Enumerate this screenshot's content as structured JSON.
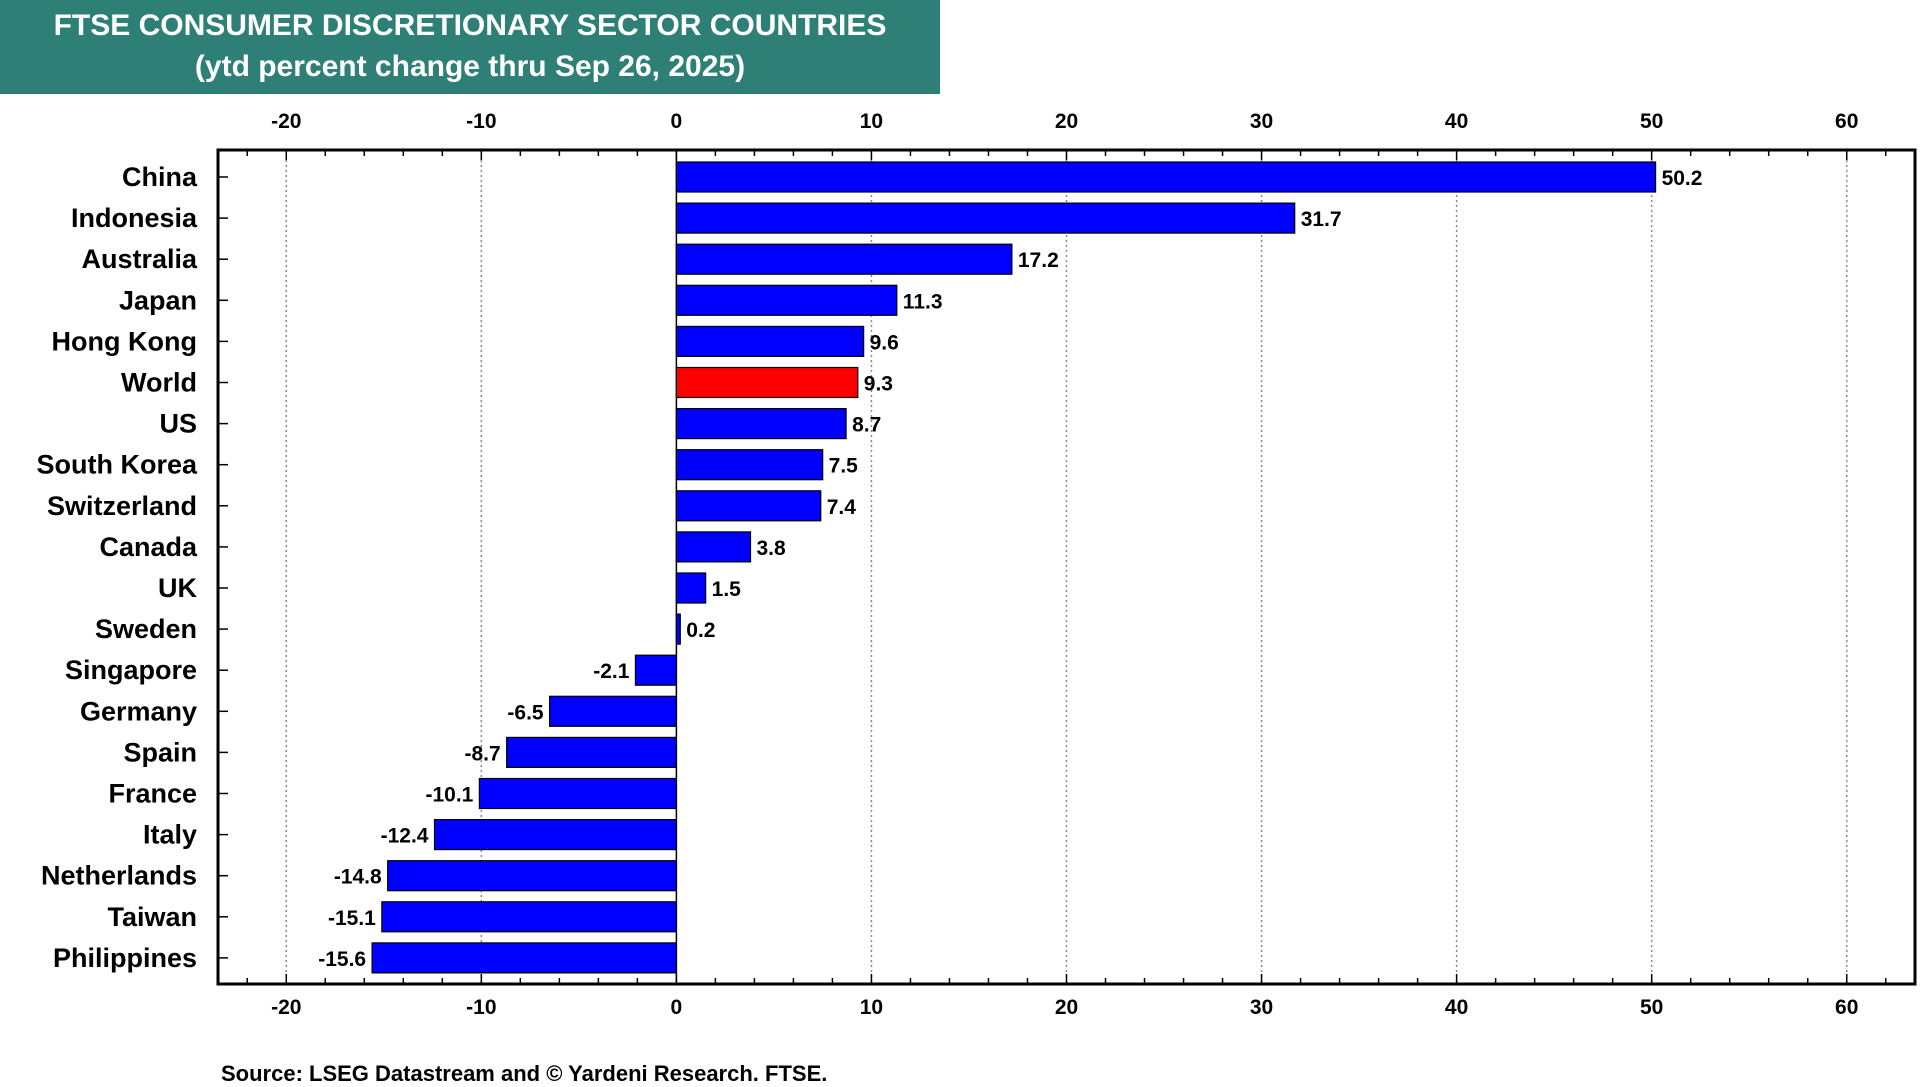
{
  "chart_data": {
    "type": "bar",
    "orientation": "horizontal",
    "title": "FTSE CONSUMER DISCRETIONARY SECTOR COUNTRIES",
    "subtitle": "(ytd percent change thru Sep 26, 2025)",
    "categories": [
      "China",
      "Indonesia",
      "Australia",
      "Japan",
      "Hong Kong",
      "World",
      "US",
      "South Korea",
      "Switzerland",
      "Canada",
      "UK",
      "Sweden",
      "Singapore",
      "Germany",
      "Spain",
      "France",
      "Italy",
      "Netherlands",
      "Taiwan",
      "Philippines"
    ],
    "values": [
      50.2,
      31.7,
      17.2,
      11.3,
      9.6,
      9.3,
      8.7,
      7.5,
      7.4,
      3.8,
      1.5,
      0.2,
      -2.1,
      -6.5,
      -8.7,
      -10.1,
      -12.4,
      -14.8,
      -15.1,
      -15.6
    ],
    "value_labels": [
      "50.2",
      "31.7",
      "17.2",
      "11.3",
      "9.6",
      "9.3",
      "8.7",
      "7.5",
      "7.4",
      "3.8",
      "1.5",
      "0.2",
      "-2.1",
      "-6.5",
      "-8.7",
      "-10.1",
      "-12.4",
      "-14.8",
      "-15.1",
      "-15.6"
    ],
    "highlight_category": "World",
    "xlim": [
      -23.5,
      63.5
    ],
    "xticks": [
      -20,
      -10,
      0,
      10,
      20,
      30,
      40,
      50,
      60
    ],
    "xtick_labels": [
      "-20",
      "-10",
      "0",
      "10",
      "20",
      "30",
      "40",
      "50",
      "60"
    ],
    "grid": true,
    "xlabel": "",
    "ylabel": "",
    "colors": {
      "bar": "#0000ff",
      "highlight": "#ff0000",
      "title_background": "#2e8076",
      "title_text": "#ffffff"
    },
    "source": "Source: LSEG Datastream and © Yardeni Research. FTSE."
  }
}
